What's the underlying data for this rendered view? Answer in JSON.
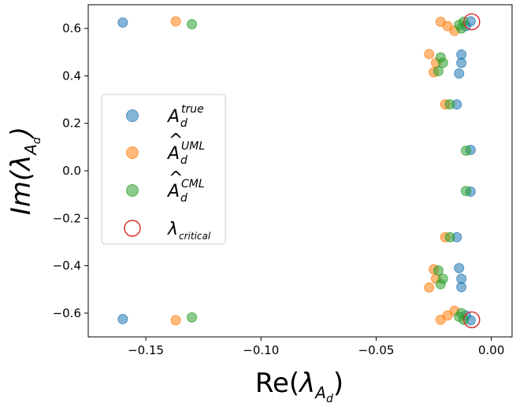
{
  "chart_data": {
    "type": "scatter",
    "xlabel": "Re(λ_A_d)",
    "ylabel": "Im(λ_A_d)",
    "xlim": [
      -0.175,
      0.009
    ],
    "ylim": [
      -0.7,
      0.7
    ],
    "xticks": [
      -0.15,
      -0.1,
      -0.05,
      0.0
    ],
    "xtick_labels": [
      "−0.15",
      "−0.10",
      "−0.05",
      "0.00"
    ],
    "yticks": [
      -0.6,
      -0.4,
      -0.2,
      0.0,
      0.2,
      0.4,
      0.6
    ],
    "ytick_labels": [
      "−0.6",
      "−0.4",
      "−0.2",
      "0.0",
      "0.2",
      "0.4",
      "0.6"
    ],
    "grid": false,
    "legend_position": "center-left",
    "series": [
      {
        "name": "A_d^true",
        "color": "#1f77b4",
        "marker": "filled-circle",
        "points": [
          [
            -0.16,
            0.625
          ],
          [
            -0.16,
            -0.625
          ],
          [
            -0.009,
            0.63
          ],
          [
            -0.009,
            -0.63
          ],
          [
            -0.011,
            0.61
          ],
          [
            -0.011,
            -0.61
          ],
          [
            -0.013,
            0.49
          ],
          [
            -0.013,
            -0.49
          ],
          [
            -0.013,
            0.455
          ],
          [
            -0.013,
            -0.455
          ],
          [
            -0.014,
            0.41
          ],
          [
            -0.014,
            -0.41
          ],
          [
            -0.015,
            0.28
          ],
          [
            -0.015,
            -0.28
          ],
          [
            -0.009,
            0.088
          ],
          [
            -0.009,
            -0.088
          ]
        ]
      },
      {
        "name": "Â_d^UML",
        "color": "#ff7f0e",
        "marker": "filled-circle",
        "points": [
          [
            -0.137,
            0.63
          ],
          [
            -0.137,
            -0.63
          ],
          [
            -0.022,
            0.628
          ],
          [
            -0.022,
            -0.628
          ],
          [
            -0.019,
            0.61
          ],
          [
            -0.019,
            -0.61
          ],
          [
            -0.016,
            0.59
          ],
          [
            -0.016,
            -0.59
          ],
          [
            -0.027,
            0.492
          ],
          [
            -0.027,
            -0.492
          ],
          [
            -0.024,
            0.455
          ],
          [
            -0.024,
            -0.455
          ],
          [
            -0.025,
            0.415
          ],
          [
            -0.025,
            -0.415
          ],
          [
            -0.02,
            0.28
          ],
          [
            -0.02,
            -0.28
          ]
        ]
      },
      {
        "name": "Â_d^CML",
        "color": "#2ca02c",
        "marker": "filled-circle",
        "points": [
          [
            -0.13,
            0.618
          ],
          [
            -0.13,
            -0.618
          ],
          [
            -0.012,
            0.628
          ],
          [
            -0.012,
            -0.628
          ],
          [
            -0.014,
            0.615
          ],
          [
            -0.014,
            -0.615
          ],
          [
            -0.013,
            0.6
          ],
          [
            -0.013,
            -0.6
          ],
          [
            -0.022,
            0.478
          ],
          [
            -0.022,
            -0.478
          ],
          [
            -0.021,
            0.455
          ],
          [
            -0.021,
            -0.455
          ],
          [
            -0.023,
            0.42
          ],
          [
            -0.023,
            -0.42
          ],
          [
            -0.018,
            0.28
          ],
          [
            -0.018,
            -0.28
          ],
          [
            -0.011,
            0.085
          ],
          [
            -0.011,
            -0.085
          ]
        ]
      },
      {
        "name": "λ_critical",
        "color": "#d62728",
        "marker": "open-circle",
        "points": [
          [
            -0.0085,
            0.628
          ],
          [
            -0.0085,
            -0.628
          ]
        ]
      }
    ]
  },
  "legend": {
    "items": [
      {
        "base": "A",
        "accent": "",
        "sub": "d",
        "sup": "true",
        "color": "#1f77b4",
        "marker": "filled"
      },
      {
        "base": "A",
        "accent": "^",
        "sub": "d",
        "sup": "UML",
        "color": "#ff7f0e",
        "marker": "filled"
      },
      {
        "base": "A",
        "accent": "^",
        "sub": "d",
        "sup": "CML",
        "color": "#2ca02c",
        "marker": "filled"
      },
      {
        "base": "λ",
        "accent": "",
        "sub": "critical",
        "sup": "",
        "color": "#d62728",
        "marker": "open"
      }
    ]
  },
  "axis_label_parts": {
    "x": {
      "prefix": "Re(",
      "lambda": "λ",
      "sub": "A",
      "subsub": "d",
      "suffix": ")"
    },
    "y": {
      "prefix": "Im(",
      "lambda": "λ",
      "sub": "A",
      "subsub": "d",
      "suffix": ")"
    }
  }
}
